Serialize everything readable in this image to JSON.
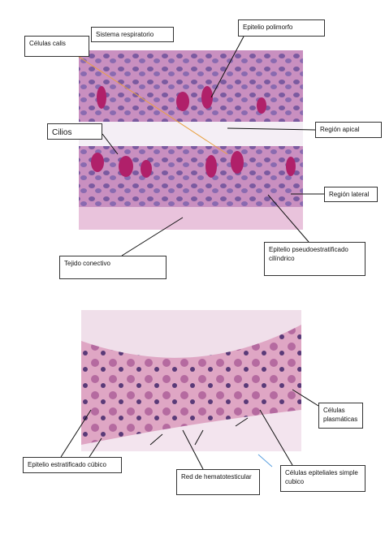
{
  "figure_1": {
    "labels": [
      "Células calis",
      "Sistema respiratorio",
      "Epitelio polimorfo",
      "Cilios",
      "Región apical",
      "Región lateral",
      "Epitelio pseudoestratificado cilíndrico",
      "Tejido conectivo"
    ]
  },
  "figure_2": {
    "labels": [
      "Células plasmáticas",
      "Epitelio estratificado cúbico",
      "Red de hematotesticular",
      "Células epiteliales simple cubico"
    ]
  }
}
